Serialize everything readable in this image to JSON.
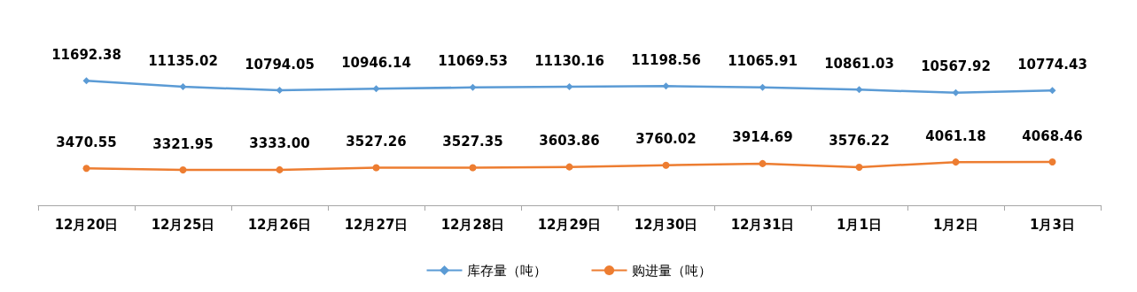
{
  "chart_data": {
    "type": "line",
    "categories": [
      "12月20日",
      "12月25日",
      "12月26日",
      "12月27日",
      "12月28日",
      "12月29日",
      "12月30日",
      "12月31日",
      "1月1日",
      "1月2日",
      "1月3日"
    ],
    "series": [
      {
        "name": "库存量（吨）",
        "color": "#5b9bd5",
        "marker": "diamond",
        "values": [
          11692.38,
          11135.02,
          10794.05,
          10946.14,
          11069.53,
          11130.16,
          11198.56,
          11065.91,
          10861.03,
          10567.92,
          10774.43
        ],
        "value_labels": [
          "11692.38",
          "11135.02",
          "10794.05",
          "10946.14",
          "11069.53",
          "11130.16",
          "11198.56",
          "11065.91",
          "10861.03",
          "10567.92",
          "10774.43"
        ]
      },
      {
        "name": "购进量（吨）",
        "color": "#ed7d31",
        "marker": "circle",
        "values": [
          3470.55,
          3321.95,
          3333.0,
          3527.26,
          3527.35,
          3603.86,
          3760.02,
          3914.69,
          3576.22,
          4061.18,
          4068.46
        ],
        "value_labels": [
          "3470.55",
          "3321.95",
          "3333.00",
          "3527.26",
          "3527.35",
          "3603.86",
          "3760.02",
          "3914.69",
          "3576.22",
          "4061.18",
          "4068.46"
        ]
      }
    ],
    "grid": false,
    "legend": "bottom",
    "tick_labels": "x"
  }
}
